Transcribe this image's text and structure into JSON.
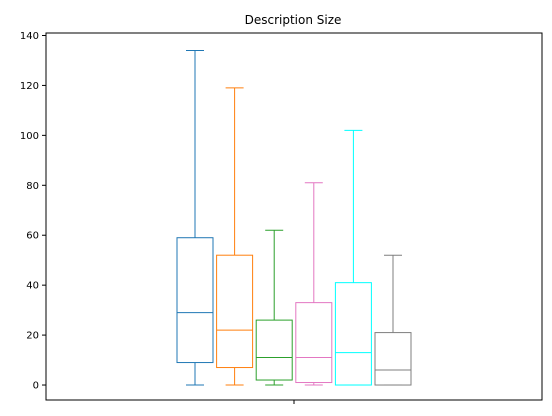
{
  "chart_data": {
    "type": "boxplot",
    "title": "Description Size",
    "xlabel": "",
    "ylabel": "",
    "ylim": [
      -6,
      141
    ],
    "y_ticks": [
      0,
      20,
      40,
      60,
      80,
      100,
      120,
      140
    ],
    "x_ticks": [
      ""
    ],
    "grid": false,
    "legend": "none",
    "boxes": [
      {
        "color": "#1f77b4",
        "whisker_low": 0,
        "q1": 9,
        "median": 29,
        "q3": 59,
        "whisker_high": 134
      },
      {
        "color": "#ff7f0e",
        "whisker_low": 0,
        "q1": 7,
        "median": 22,
        "q3": 52,
        "whisker_high": 119
      },
      {
        "color": "#2ca02c",
        "whisker_low": 0,
        "q1": 2,
        "median": 11,
        "q3": 26,
        "whisker_high": 62
      },
      {
        "color": "#e377c2",
        "whisker_low": 0,
        "q1": 1,
        "median": 11,
        "q3": 33,
        "whisker_high": 81
      },
      {
        "color": "#00ffff",
        "whisker_low": 0,
        "q1": 0,
        "median": 13,
        "q3": 41,
        "whisker_high": 102
      },
      {
        "color": "#7f7f7f",
        "whisker_low": 0,
        "q1": 0,
        "median": 6,
        "q3": 21,
        "whisker_high": 52
      }
    ]
  }
}
